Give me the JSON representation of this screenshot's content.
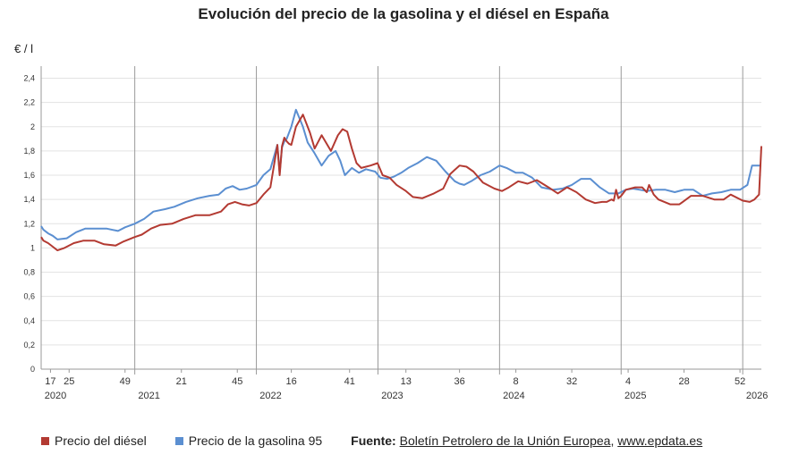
{
  "chart_data": {
    "type": "line",
    "title": "Evolución del precio de la gasolina y el diésel en España",
    "ylabel": "€ / l",
    "ylim": [
      0,
      2.5
    ],
    "yticks": [
      "0",
      "0,2",
      "0,4",
      "0,6",
      "0,8",
      "1",
      "1,2",
      "1,4",
      "1,6",
      "1,8",
      "2",
      "2,2",
      "2,4"
    ],
    "x_tick_labels": [
      {
        "week": 17,
        "year": 2020,
        "label": "17"
      },
      {
        "week": 25,
        "year": 2020,
        "label": "25"
      },
      {
        "week": 49,
        "year": 2020,
        "label": "49"
      },
      {
        "week": 21,
        "year": 2021,
        "label": "21"
      },
      {
        "week": 45,
        "year": 2021,
        "label": "45"
      },
      {
        "week": 16,
        "year": 2022,
        "label": "16"
      },
      {
        "week": 41,
        "year": 2022,
        "label": "41"
      },
      {
        "week": 13,
        "year": 2023,
        "label": "13"
      },
      {
        "week": 36,
        "year": 2023,
        "label": "36"
      },
      {
        "week": 8,
        "year": 2024,
        "label": "8"
      },
      {
        "week": 32,
        "year": 2024,
        "label": "32"
      },
      {
        "week": 4,
        "year": 2025,
        "label": "4"
      },
      {
        "week": 28,
        "year": 2025,
        "label": "28"
      },
      {
        "week": 52,
        "year": 2025,
        "label": "52"
      }
    ],
    "year_labels": [
      "2020",
      "2021",
      "2022",
      "2023",
      "2024",
      "2025",
      "2026"
    ],
    "grid": "horizontal",
    "legend_position": "bottom-left",
    "series": [
      {
        "name": "Precio del diésel",
        "color": "#b33a32",
        "x": [
          "2020-W13",
          "2020-W14",
          "2020-W16",
          "2020-W18",
          "2020-W20",
          "2020-W23",
          "2020-W27",
          "2020-W31",
          "2020-W36",
          "2020-W40",
          "2020-W45",
          "2020-W48",
          "2021-W01",
          "2021-W04",
          "2021-W08",
          "2021-W12",
          "2021-W17",
          "2021-W22",
          "2021-W27",
          "2021-W33",
          "2021-W38",
          "2021-W41",
          "2021-W44",
          "2021-W47",
          "2021-W50",
          "2022-W01",
          "2022-W04",
          "2022-W07",
          "2022-W10",
          "2022-W11",
          "2022-W12",
          "2022-W13",
          "2022-W14",
          "2022-W15",
          "2022-W16",
          "2022-W18",
          "2022-W21",
          "2022-W24",
          "2022-W26",
          "2022-W29",
          "2022-W33",
          "2022-W36",
          "2022-W38",
          "2022-W40",
          "2022-W42",
          "2022-W44",
          "2022-W46",
          "2022-W50",
          "2022-W53",
          "2023-W03",
          "2023-W06",
          "2023-W09",
          "2023-W13",
          "2023-W16",
          "2023-W20",
          "2023-W25",
          "2023-W29",
          "2023-W32",
          "2023-W36",
          "2023-W39",
          "2023-W42",
          "2023-W46",
          "2023-W51",
          "2024-W02",
          "2024-W05",
          "2024-W09",
          "2024-W13",
          "2024-W17",
          "2024-W22",
          "2024-W26",
          "2024-W30",
          "2024-W34",
          "2024-W38",
          "2024-W42",
          "2024-W45",
          "2024-W47",
          "2024-W49",
          "2024-W50",
          "2024-W51",
          "2024-W52",
          "2025-W01",
          "2025-W03",
          "2025-W07",
          "2025-W10",
          "2025-W12",
          "2025-W13",
          "2025-W15",
          "2025-W17",
          "2025-W22",
          "2025-W26",
          "2025-W31",
          "2025-W36",
          "2025-W41",
          "2025-W45",
          "2025-W48",
          "2026-W01",
          "2026-W04",
          "2026-W06",
          "2026-W07",
          "2026-W08",
          "2026-W09"
        ],
        "values": [
          1.09,
          1.06,
          1.04,
          1.01,
          0.98,
          1.0,
          1.04,
          1.06,
          1.06,
          1.03,
          1.02,
          1.05,
          1.09,
          1.11,
          1.16,
          1.19,
          1.2,
          1.24,
          1.27,
          1.27,
          1.3,
          1.36,
          1.38,
          1.36,
          1.35,
          1.37,
          1.44,
          1.5,
          1.85,
          1.6,
          1.84,
          1.91,
          1.88,
          1.86,
          1.85,
          2.0,
          2.1,
          1.95,
          1.82,
          1.93,
          1.8,
          1.93,
          1.98,
          1.96,
          1.82,
          1.7,
          1.66,
          1.68,
          1.7,
          1.6,
          1.58,
          1.52,
          1.47,
          1.42,
          1.41,
          1.45,
          1.49,
          1.61,
          1.68,
          1.67,
          1.63,
          1.54,
          1.49,
          1.47,
          1.5,
          1.55,
          1.53,
          1.56,
          1.5,
          1.45,
          1.5,
          1.46,
          1.4,
          1.37,
          1.38,
          1.38,
          1.4,
          1.39,
          1.48,
          1.41,
          1.43,
          1.48,
          1.5,
          1.5,
          1.46,
          1.52,
          1.44,
          1.4,
          1.36,
          1.36,
          1.43,
          1.43,
          1.4,
          1.4,
          1.44,
          1.39,
          1.38,
          1.4,
          1.42,
          1.44,
          1.84
        ]
      },
      {
        "name": "Precio de la gasolina 95",
        "color": "#5b8fd1",
        "x": [
          "2020-W13",
          "2020-W14",
          "2020-W16",
          "2020-W18",
          "2020-W20",
          "2020-W24",
          "2020-W28",
          "2020-W32",
          "2020-W37",
          "2020-W41",
          "2020-W46",
          "2020-W49",
          "2021-W01",
          "2021-W05",
          "2021-W09",
          "2021-W14",
          "2021-W18",
          "2021-W23",
          "2021-W28",
          "2021-W33",
          "2021-W37",
          "2021-W40",
          "2021-W43",
          "2021-W46",
          "2021-W49",
          "2022-W01",
          "2022-W04",
          "2022-W07",
          "2022-W10",
          "2022-W11",
          "2022-W12",
          "2022-W13",
          "2022-W14",
          "2022-W16",
          "2022-W18",
          "2022-W21",
          "2022-W23",
          "2022-W26",
          "2022-W29",
          "2022-W32",
          "2022-W35",
          "2022-W37",
          "2022-W39",
          "2022-W42",
          "2022-W45",
          "2022-W48",
          "2022-W52",
          "2023-W02",
          "2023-W05",
          "2023-W08",
          "2023-W11",
          "2023-W14",
          "2023-W18",
          "2023-W22",
          "2023-W26",
          "2023-W30",
          "2023-W34",
          "2023-W36",
          "2023-W38",
          "2023-W41",
          "2023-W45",
          "2023-W49",
          "2024-W01",
          "2024-W04",
          "2024-W08",
          "2024-W11",
          "2024-W15",
          "2024-W19",
          "2024-W24",
          "2024-W28",
          "2024-W32",
          "2024-W36",
          "2024-W40",
          "2024-W44",
          "2024-W48",
          "2024-W52",
          "2025-W03",
          "2025-W06",
          "2025-W09",
          "2025-W12",
          "2025-W16",
          "2025-W20",
          "2025-W24",
          "2025-W28",
          "2025-W32",
          "2025-W36",
          "2025-W40",
          "2025-W44",
          "2025-W48",
          "2025-W52",
          "2026-W03",
          "2026-W05",
          "2026-W07",
          "2026-W08",
          "2026-W09"
        ],
        "values": [
          1.18,
          1.15,
          1.12,
          1.1,
          1.07,
          1.08,
          1.13,
          1.16,
          1.16,
          1.16,
          1.14,
          1.17,
          1.2,
          1.24,
          1.3,
          1.32,
          1.34,
          1.38,
          1.41,
          1.43,
          1.44,
          1.49,
          1.51,
          1.48,
          1.49,
          1.52,
          1.6,
          1.65,
          1.85,
          1.62,
          1.83,
          1.88,
          1.9,
          2.0,
          2.14,
          2.0,
          1.87,
          1.78,
          1.68,
          1.76,
          1.8,
          1.72,
          1.6,
          1.66,
          1.62,
          1.65,
          1.63,
          1.58,
          1.57,
          1.59,
          1.62,
          1.66,
          1.7,
          1.75,
          1.72,
          1.63,
          1.55,
          1.53,
          1.52,
          1.55,
          1.6,
          1.63,
          1.68,
          1.66,
          1.62,
          1.62,
          1.58,
          1.5,
          1.48,
          1.49,
          1.52,
          1.57,
          1.57,
          1.5,
          1.45,
          1.45,
          1.48,
          1.49,
          1.48,
          1.47,
          1.48,
          1.48,
          1.46,
          1.48,
          1.48,
          1.43,
          1.45,
          1.46,
          1.48,
          1.48,
          1.52,
          1.68,
          1.68,
          1.68,
          1.68
        ]
      }
    ]
  },
  "source": {
    "label": "Fuente:",
    "text": "Boletín Petrolero de la Unión Europea",
    "separator": ",",
    "site": "www.epdata.es"
  }
}
